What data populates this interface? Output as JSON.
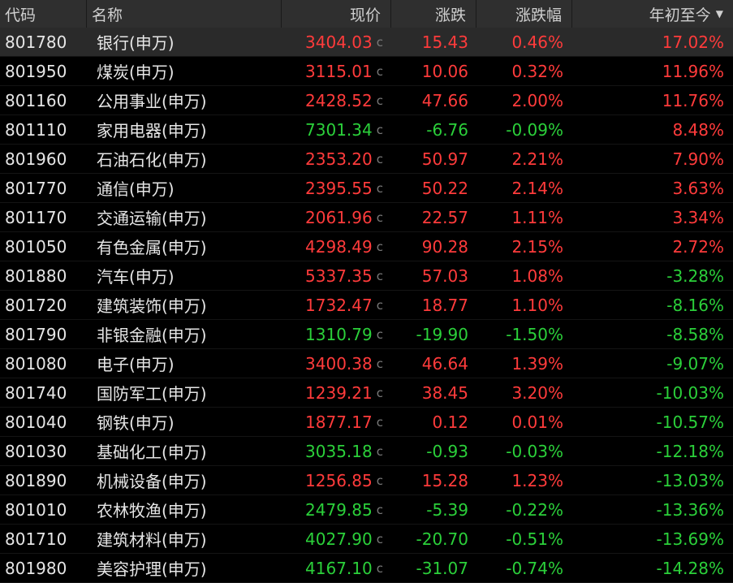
{
  "colors": {
    "up": "#ff3b3b",
    "down": "#2bd03a",
    "header_bg": "#2f2f2f",
    "selected_bg": "#2a2a2a"
  },
  "header": {
    "code": "代码",
    "name": "名称",
    "price": "现价",
    "change": "涨跌",
    "change_pct": "涨跌幅",
    "ytd": "年初至今",
    "sort_icon": "sort-desc-triangle-icon"
  },
  "rows": [
    {
      "code": "801780",
      "name": "银行(申万)",
      "price": "3404.03",
      "flag": "c",
      "change": "15.43",
      "pct": "0.46%",
      "ytd": "17.02%",
      "price_dir": "up",
      "change_dir": "up",
      "ytd_dir": "up"
    },
    {
      "code": "801950",
      "name": "煤炭(申万)",
      "price": "3115.01",
      "flag": "c",
      "change": "10.06",
      "pct": "0.32%",
      "ytd": "11.96%",
      "price_dir": "up",
      "change_dir": "up",
      "ytd_dir": "up"
    },
    {
      "code": "801160",
      "name": "公用事业(申万)",
      "price": "2428.52",
      "flag": "c",
      "change": "47.66",
      "pct": "2.00%",
      "ytd": "11.76%",
      "price_dir": "up",
      "change_dir": "up",
      "ytd_dir": "up"
    },
    {
      "code": "801110",
      "name": "家用电器(申万)",
      "price": "7301.34",
      "flag": "c",
      "change": "-6.76",
      "pct": "-0.09%",
      "ytd": "8.48%",
      "price_dir": "down",
      "change_dir": "down",
      "ytd_dir": "up"
    },
    {
      "code": "801960",
      "name": "石油石化(申万)",
      "price": "2353.20",
      "flag": "c",
      "change": "50.97",
      "pct": "2.21%",
      "ytd": "7.90%",
      "price_dir": "up",
      "change_dir": "up",
      "ytd_dir": "up"
    },
    {
      "code": "801770",
      "name": "通信(申万)",
      "price": "2395.55",
      "flag": "c",
      "change": "50.22",
      "pct": "2.14%",
      "ytd": "3.63%",
      "price_dir": "up",
      "change_dir": "up",
      "ytd_dir": "up"
    },
    {
      "code": "801170",
      "name": "交通运输(申万)",
      "price": "2061.96",
      "flag": "c",
      "change": "22.57",
      "pct": "1.11%",
      "ytd": "3.34%",
      "price_dir": "up",
      "change_dir": "up",
      "ytd_dir": "up"
    },
    {
      "code": "801050",
      "name": "有色金属(申万)",
      "price": "4298.49",
      "flag": "c",
      "change": "90.28",
      "pct": "2.15%",
      "ytd": "2.72%",
      "price_dir": "up",
      "change_dir": "up",
      "ytd_dir": "up"
    },
    {
      "code": "801880",
      "name": "汽车(申万)",
      "price": "5337.35",
      "flag": "c",
      "change": "57.03",
      "pct": "1.08%",
      "ytd": "-3.28%",
      "price_dir": "up",
      "change_dir": "up",
      "ytd_dir": "down"
    },
    {
      "code": "801720",
      "name": "建筑装饰(申万)",
      "price": "1732.47",
      "flag": "c",
      "change": "18.77",
      "pct": "1.10%",
      "ytd": "-8.16%",
      "price_dir": "up",
      "change_dir": "up",
      "ytd_dir": "down"
    },
    {
      "code": "801790",
      "name": "非银金融(申万)",
      "price": "1310.79",
      "flag": "c",
      "change": "-19.90",
      "pct": "-1.50%",
      "ytd": "-8.58%",
      "price_dir": "down",
      "change_dir": "down",
      "ytd_dir": "down"
    },
    {
      "code": "801080",
      "name": "电子(申万)",
      "price": "3400.38",
      "flag": "c",
      "change": "46.64",
      "pct": "1.39%",
      "ytd": "-9.07%",
      "price_dir": "up",
      "change_dir": "up",
      "ytd_dir": "down"
    },
    {
      "code": "801740",
      "name": "国防军工(申万)",
      "price": "1239.21",
      "flag": "c",
      "change": "38.45",
      "pct": "3.20%",
      "ytd": "-10.03%",
      "price_dir": "up",
      "change_dir": "up",
      "ytd_dir": "down"
    },
    {
      "code": "801040",
      "name": "钢铁(申万)",
      "price": "1877.17",
      "flag": "c",
      "change": "0.12",
      "pct": "0.01%",
      "ytd": "-10.57%",
      "price_dir": "up",
      "change_dir": "up",
      "ytd_dir": "down"
    },
    {
      "code": "801030",
      "name": "基础化工(申万)",
      "price": "3035.18",
      "flag": "c",
      "change": "-0.93",
      "pct": "-0.03%",
      "ytd": "-12.18%",
      "price_dir": "down",
      "change_dir": "down",
      "ytd_dir": "down"
    },
    {
      "code": "801890",
      "name": "机械设备(申万)",
      "price": "1256.85",
      "flag": "c",
      "change": "15.28",
      "pct": "1.23%",
      "ytd": "-13.03%",
      "price_dir": "up",
      "change_dir": "up",
      "ytd_dir": "down"
    },
    {
      "code": "801010",
      "name": "农林牧渔(申万)",
      "price": "2479.85",
      "flag": "c",
      "change": "-5.39",
      "pct": "-0.22%",
      "ytd": "-13.36%",
      "price_dir": "down",
      "change_dir": "down",
      "ytd_dir": "down"
    },
    {
      "code": "801710",
      "name": "建筑材料(申万)",
      "price": "4027.90",
      "flag": "c",
      "change": "-20.70",
      "pct": "-0.51%",
      "ytd": "-13.69%",
      "price_dir": "down",
      "change_dir": "down",
      "ytd_dir": "down"
    },
    {
      "code": "801980",
      "name": "美容护理(申万)",
      "price": "4167.10",
      "flag": "c",
      "change": "-31.07",
      "pct": "-0.74%",
      "ytd": "-14.28%",
      "price_dir": "down",
      "change_dir": "down",
      "ytd_dir": "down"
    }
  ]
}
